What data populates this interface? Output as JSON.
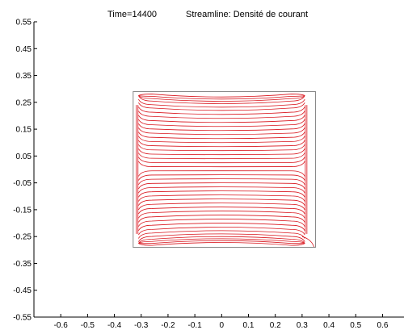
{
  "chart_data": {
    "type": "line",
    "title_time": "Time=14400",
    "title_plot": "Streamline: Densité de courant",
    "xlabel": "",
    "ylabel": "",
    "xlim": [
      -0.7,
      0.68
    ],
    "ylim": [
      -0.55,
      0.55
    ],
    "x_ticks": [
      -0.6,
      -0.5,
      -0.4,
      -0.3,
      -0.2,
      -0.1,
      0,
      0.1,
      0.2,
      0.3,
      0.4,
      0.5,
      0.6
    ],
    "x_tick_labels": [
      "-0.6",
      "-0.5",
      "-0.4",
      "-0.3",
      "-0.2",
      "-0.1",
      "0",
      "0.1",
      "0.2",
      "0.3",
      "0.4",
      "0.5",
      "0.6"
    ],
    "y_ticks": [
      0.55,
      0.45,
      0.35,
      0.25,
      0.15,
      0.05,
      -0.05,
      -0.15,
      -0.25,
      -0.35,
      -0.45,
      -0.55
    ],
    "y_tick_labels": [
      "0.55",
      "0.45",
      "0.35",
      "0.25",
      "0.15",
      "0.05",
      "-0.05",
      "-0.15",
      "-0.25",
      "-0.35",
      "-0.45",
      "-0.55"
    ],
    "domain_box": {
      "x": [
        -0.33,
        0.35
      ],
      "y": [
        -0.29,
        0.29
      ]
    },
    "streamline_color": "#d9141c",
    "boundary_color": "#888888",
    "streamlines": {
      "x_range": [
        -0.31,
        0.31
      ],
      "y_top": 0.275,
      "y_bottom": -0.275,
      "levels": [
        0.27,
        0.262,
        0.254,
        0.245,
        0.232,
        0.22,
        0.205,
        0.19,
        0.175,
        0.16,
        0.145,
        0.13,
        0.115,
        0.1,
        0.085,
        0.07,
        0.055,
        0.04,
        0.025,
        0.01,
        -0.005,
        -0.02,
        -0.035,
        -0.05,
        -0.065,
        -0.08,
        -0.095,
        -0.11,
        -0.125,
        -0.14,
        -0.155,
        -0.17,
        -0.185,
        -0.2,
        -0.215,
        -0.228,
        -0.24,
        -0.25,
        -0.258,
        -0.265,
        -0.272
      ]
    }
  }
}
